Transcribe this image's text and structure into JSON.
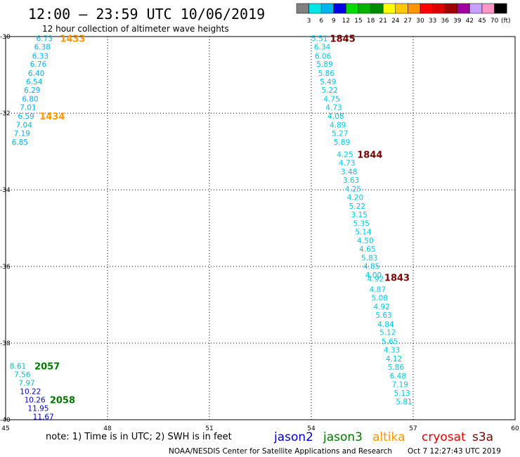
{
  "title": "12:00 – 23:59 UTC 10/06/2019",
  "subtitle": "12 hour collection of altimeter wave heights",
  "note": "note: 1) Time is in UTC; 2) SWH is in feet",
  "footer_left": "NOAA/NESDIS Center for Satellite Applications and Research",
  "footer_right": "Oct  7 12:27:43 UTC 2019",
  "colors": {
    "jason2": "#0000c8",
    "jason3": "#007800",
    "altika": "#ff9600",
    "cryosat": "#e60000",
    "s3a": "#780000",
    "cyan": "#00c8e6",
    "aqua": "#00b4f0",
    "teal": "#00bebe",
    "green": "#00dc00"
  },
  "scale": {
    "labels": [
      "3",
      "6",
      "9",
      "12",
      "15",
      "18",
      "21",
      "24",
      "27",
      "30",
      "33",
      "36",
      "39",
      "42",
      "45",
      "70"
    ],
    "unit": "(ft)",
    "colors": [
      "#808080",
      "#00e6e6",
      "#00b4f0",
      "#0000e6",
      "#00dc00",
      "#00b400",
      "#008c00",
      "#ffff00",
      "#ffc800",
      "#ff9600",
      "#ff0000",
      "#dc0000",
      "#a00000",
      "#a000a0",
      "#c8a0ff",
      "#ff96c8",
      "#000000"
    ]
  },
  "chart_data": {
    "type": "scatter",
    "x_ticks": [
      "45",
      "48",
      "51",
      "54",
      "57",
      "60"
    ],
    "y_ticks": [
      "-30",
      "-32",
      "-34",
      "-36",
      "-38",
      "-40"
    ],
    "xlim": [
      45,
      60
    ],
    "ylim": [
      -40,
      -30
    ],
    "grid": true,
    "legend": [
      {
        "name": "jason2",
        "color": "#0000c8"
      },
      {
        "name": "jason3",
        "color": "#007800"
      },
      {
        "name": "altika",
        "color": "#ff9600"
      },
      {
        "name": "cryosat",
        "color": "#e60000"
      },
      {
        "name": "s3a",
        "color": "#780000"
      }
    ],
    "labels": [
      {
        "x": 45.9,
        "y": -30.05,
        "text": "6.73",
        "color": "#00b4f0"
      },
      {
        "x": 45.84,
        "y": -30.27,
        "text": "6.38",
        "color": "#00b4f0"
      },
      {
        "x": 45.78,
        "y": -30.5,
        "text": "6.33",
        "color": "#00b4f0"
      },
      {
        "x": 45.72,
        "y": -30.72,
        "text": "6.76",
        "color": "#00b4f0"
      },
      {
        "x": 45.66,
        "y": -30.95,
        "text": "6.40",
        "color": "#00b4f0"
      },
      {
        "x": 45.6,
        "y": -31.17,
        "text": "6.54",
        "color": "#00b4f0"
      },
      {
        "x": 45.54,
        "y": -31.39,
        "text": "6.29",
        "color": "#00b4f0"
      },
      {
        "x": 45.48,
        "y": -31.62,
        "text": "6.80",
        "color": "#00b4f0"
      },
      {
        "x": 45.42,
        "y": -31.84,
        "text": "7.01",
        "color": "#00b4f0"
      },
      {
        "x": 45.36,
        "y": -32.07,
        "text": "6.59",
        "color": "#00b4f0"
      },
      {
        "x": 45.3,
        "y": -32.3,
        "text": "7.04",
        "color": "#00b4f0"
      },
      {
        "x": 45.24,
        "y": -32.52,
        "text": "7.19",
        "color": "#00b4f0"
      },
      {
        "x": 45.18,
        "y": -32.75,
        "text": "6.85",
        "color": "#00b4f0"
      },
      {
        "x": 54.0,
        "y": -30.05,
        "text": "5.51",
        "color": "#00c8e6"
      },
      {
        "x": 54.08,
        "y": -30.27,
        "text": "6.34",
        "color": "#00c8e6"
      },
      {
        "x": 54.1,
        "y": -30.5,
        "text": "6.06",
        "color": "#00c8e6"
      },
      {
        "x": 54.15,
        "y": -30.72,
        "text": "5.89",
        "color": "#00c8e6"
      },
      {
        "x": 54.2,
        "y": -30.95,
        "text": "5.86",
        "color": "#00c8e6"
      },
      {
        "x": 54.25,
        "y": -31.17,
        "text": "5.49",
        "color": "#00c8e6"
      },
      {
        "x": 54.3,
        "y": -31.39,
        "text": "5.22",
        "color": "#00c8e6"
      },
      {
        "x": 54.36,
        "y": -31.62,
        "text": "4.75",
        "color": "#00c8e6"
      },
      {
        "x": 54.42,
        "y": -31.84,
        "text": "4.73",
        "color": "#00c8e6"
      },
      {
        "x": 54.48,
        "y": -32.07,
        "text": "4.08",
        "color": "#00c8e6"
      },
      {
        "x": 54.54,
        "y": -32.3,
        "text": "4.89",
        "color": "#00c8e6"
      },
      {
        "x": 54.6,
        "y": -32.52,
        "text": "5.27",
        "color": "#00c8e6"
      },
      {
        "x": 54.66,
        "y": -32.75,
        "text": "5.89",
        "color": "#00c8e6"
      },
      {
        "x": 54.75,
        "y": -33.07,
        "text": "4.25",
        "color": "#00c8e6"
      },
      {
        "x": 54.81,
        "y": -33.29,
        "text": "4.73",
        "color": "#00c8e6"
      },
      {
        "x": 54.87,
        "y": -33.52,
        "text": "3.48",
        "color": "#00c8e6"
      },
      {
        "x": 54.93,
        "y": -33.74,
        "text": "3.63",
        "color": "#00c8e6"
      },
      {
        "x": 54.99,
        "y": -33.97,
        "text": "4.25",
        "color": "#00c8e6"
      },
      {
        "x": 55.05,
        "y": -34.19,
        "text": "4.20",
        "color": "#00c8e6"
      },
      {
        "x": 55.11,
        "y": -34.42,
        "text": "5.22",
        "color": "#00c8e6"
      },
      {
        "x": 55.17,
        "y": -34.64,
        "text": "3.15",
        "color": "#00c8e6"
      },
      {
        "x": 55.23,
        "y": -34.87,
        "text": "5.35",
        "color": "#00c8e6"
      },
      {
        "x": 55.29,
        "y": -35.09,
        "text": "5.14",
        "color": "#00c8e6"
      },
      {
        "x": 55.35,
        "y": -35.32,
        "text": "4.50",
        "color": "#00c8e6"
      },
      {
        "x": 55.41,
        "y": -35.54,
        "text": "4.65",
        "color": "#00c8e6"
      },
      {
        "x": 55.47,
        "y": -35.77,
        "text": "5.83",
        "color": "#00c8e6"
      },
      {
        "x": 55.53,
        "y": -35.99,
        "text": "4.85",
        "color": "#00c8e6"
      },
      {
        "x": 55.59,
        "y": -36.22,
        "text": "4.00",
        "color": "#00c8e6"
      },
      {
        "x": 55.65,
        "y": -36.32,
        "text": "4.92",
        "color": "#00c8e6"
      },
      {
        "x": 55.71,
        "y": -36.6,
        "text": "4.87",
        "color": "#00c8e6"
      },
      {
        "x": 55.77,
        "y": -36.82,
        "text": "5.08",
        "color": "#00c8e6"
      },
      {
        "x": 55.83,
        "y": -37.05,
        "text": "4.92",
        "color": "#00c8e6"
      },
      {
        "x": 55.89,
        "y": -37.27,
        "text": "5.63",
        "color": "#00c8e6"
      },
      {
        "x": 55.95,
        "y": -37.5,
        "text": "4.84",
        "color": "#00c8e6"
      },
      {
        "x": 56.01,
        "y": -37.72,
        "text": "5.12",
        "color": "#00c8e6"
      },
      {
        "x": 56.07,
        "y": -37.95,
        "text": "5.65",
        "color": "#00c8e6"
      },
      {
        "x": 56.13,
        "y": -38.17,
        "text": "4.33",
        "color": "#00c8e6"
      },
      {
        "x": 56.19,
        "y": -38.4,
        "text": "4.12",
        "color": "#00c8e6"
      },
      {
        "x": 56.25,
        "y": -38.62,
        "text": "5.86",
        "color": "#00c8e6"
      },
      {
        "x": 56.31,
        "y": -38.85,
        "text": "6.48",
        "color": "#00c8e6"
      },
      {
        "x": 56.37,
        "y": -39.07,
        "text": "7.19",
        "color": "#00c8e6"
      },
      {
        "x": 56.43,
        "y": -39.3,
        "text": "5.13",
        "color": "#00c8e6"
      },
      {
        "x": 56.49,
        "y": -39.52,
        "text": "5.81",
        "color": "#00c8e6"
      },
      {
        "x": 45.12,
        "y": -38.6,
        "text": "8.61",
        "color": "#00bebe"
      },
      {
        "x": 45.25,
        "y": -38.82,
        "text": "7.56",
        "color": "#00bebe"
      },
      {
        "x": 45.38,
        "y": -39.04,
        "text": "7.97",
        "color": "#00bebe"
      },
      {
        "x": 45.42,
        "y": -39.26,
        "text": "10.22",
        "color": "#0000c8"
      },
      {
        "x": 45.55,
        "y": -39.48,
        "text": "10.26",
        "color": "#0000c8"
      },
      {
        "x": 45.65,
        "y": -39.7,
        "text": "11.95",
        "color": "#0000c8"
      },
      {
        "x": 45.8,
        "y": -39.92,
        "text": "11.67",
        "color": "#0000c8"
      }
    ],
    "time_labels": [
      {
        "x": 46.6,
        "y": -30.05,
        "text": "1433",
        "color": "#ff9600"
      },
      {
        "x": 46.0,
        "y": -32.07,
        "text": "1434",
        "color": "#ff9600"
      },
      {
        "x": 54.55,
        "y": -30.05,
        "text": "1845",
        "color": "#780000"
      },
      {
        "x": 55.35,
        "y": -33.07,
        "text": "1844",
        "color": "#780000"
      },
      {
        "x": 56.15,
        "y": -36.28,
        "text": "1843",
        "color": "#780000"
      },
      {
        "x": 45.85,
        "y": -38.6,
        "text": "2057",
        "color": "#007800"
      },
      {
        "x": 46.3,
        "y": -39.48,
        "text": "2058",
        "color": "#007800"
      }
    ]
  }
}
